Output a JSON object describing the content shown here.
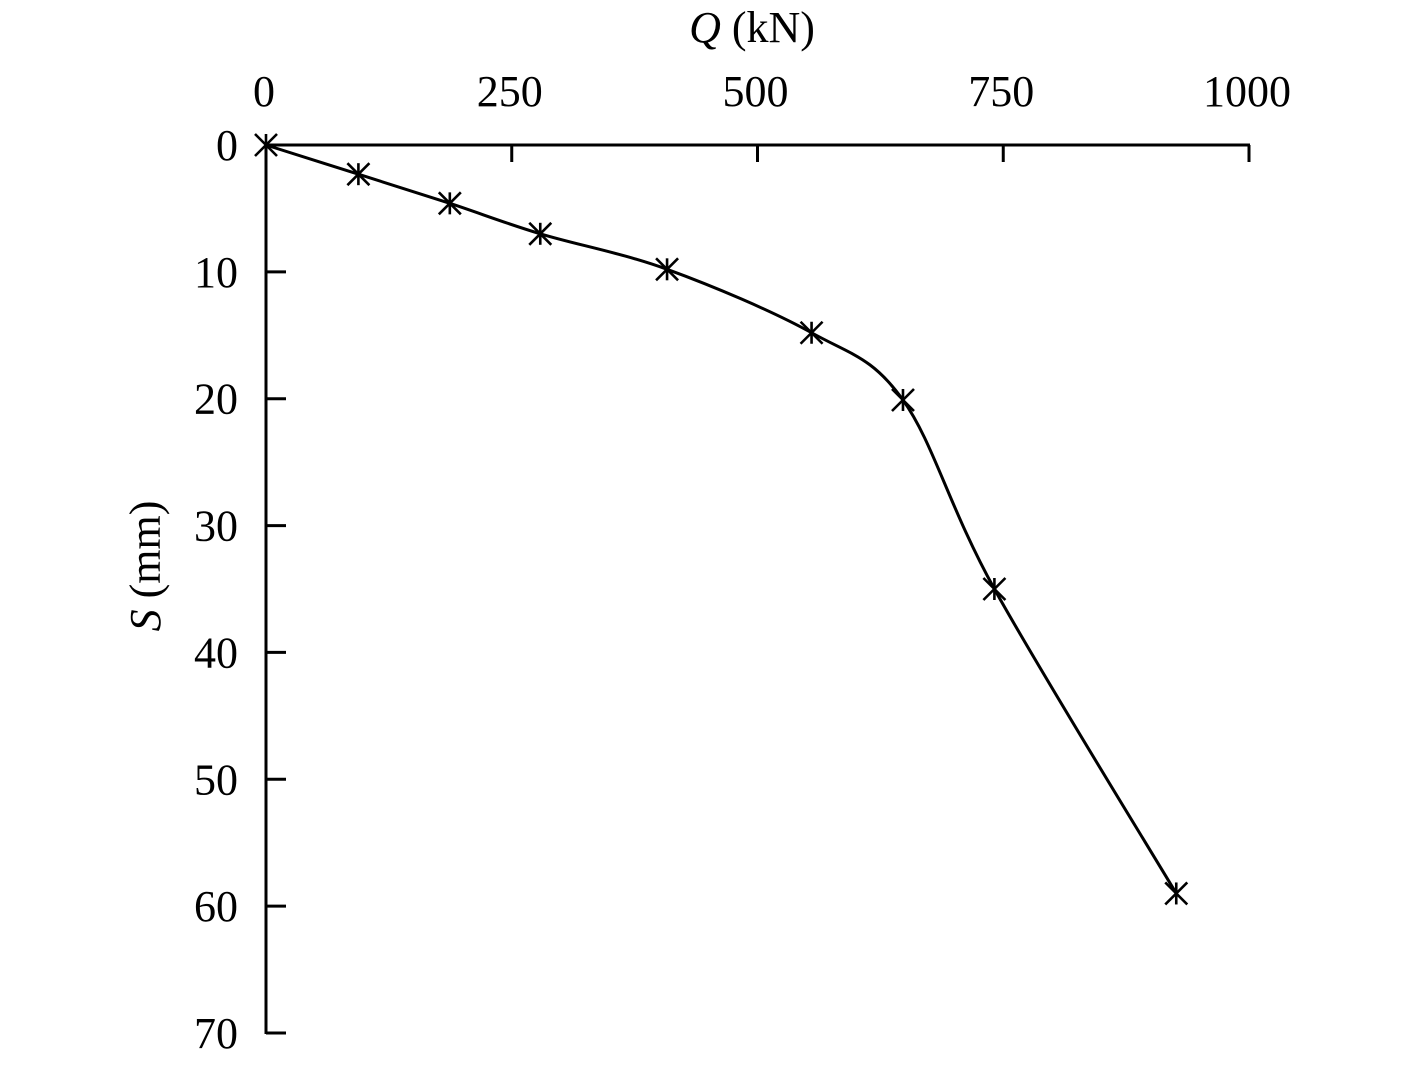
{
  "chart_data": {
    "type": "line",
    "title": "",
    "xlabel": {
      "symbol": "Q",
      "unit": " (kN)"
    },
    "ylabel": {
      "symbol": "S",
      "unit": " (mm)"
    },
    "x_axis": {
      "range": [
        0,
        1000
      ],
      "ticks": [
        0,
        250,
        500,
        750,
        1000
      ],
      "tick_labels": [
        "0",
        "250",
        "500",
        "750",
        "1000"
      ],
      "position": "top"
    },
    "y_axis": {
      "range": [
        0,
        70
      ],
      "inverted": true,
      "ticks": [
        0,
        10,
        20,
        30,
        40,
        50,
        60,
        70
      ],
      "tick_labels": [
        "0",
        "10",
        "20",
        "30",
        "40",
        "50",
        "60",
        "70"
      ]
    },
    "grid": false,
    "legend": "none",
    "series": [
      {
        "marker": "asterisk",
        "color": "#000000",
        "smooth": true,
        "points": [
          {
            "x": 0,
            "y": 0
          },
          {
            "x": 94,
            "y": 2.3
          },
          {
            "x": 187,
            "y": 4.6
          },
          {
            "x": 279,
            "y": 7.0
          },
          {
            "x": 408,
            "y": 9.8
          },
          {
            "x": 555,
            "y": 14.8
          },
          {
            "x": 648,
            "y": 20.1
          },
          {
            "x": 741,
            "y": 35.0
          },
          {
            "x": 926,
            "y": 59.0
          }
        ]
      }
    ]
  }
}
